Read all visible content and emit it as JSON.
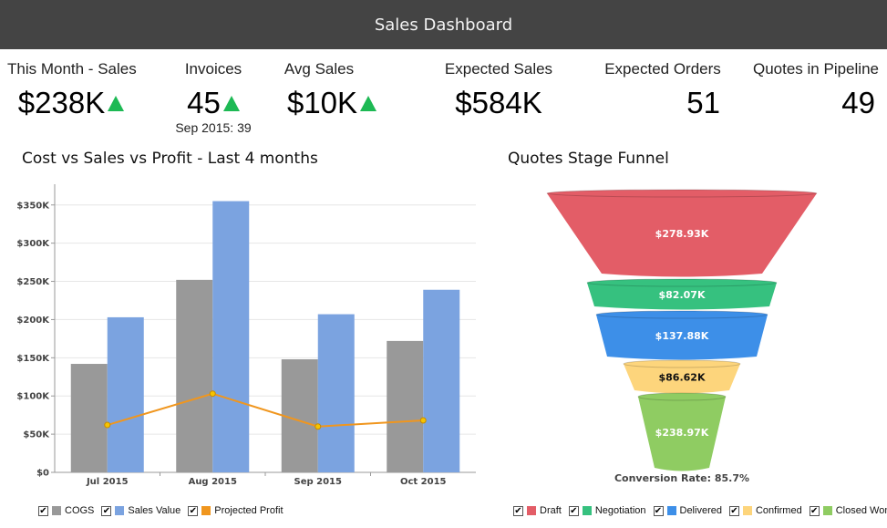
{
  "header": {
    "title": "Sales Dashboard"
  },
  "kpis": {
    "this_month_sales": {
      "label": "This Month - Sales",
      "value": "$238K"
    },
    "invoices": {
      "label": "Invoices",
      "value": "45",
      "sub": "Sep 2015: 39"
    },
    "avg_sales": {
      "label": "Avg Sales",
      "value": "$10K"
    },
    "expected_sales": {
      "label": "Expected Sales",
      "value": "$584K"
    },
    "expected_orders": {
      "label": "Expected Orders",
      "value": "51"
    },
    "quotes_in_pipeline": {
      "label": "Quotes in Pipeline",
      "value": "49"
    }
  },
  "cost_chart": {
    "title": "Cost vs Sales vs Profit - Last 4 months",
    "legend": [
      {
        "label": "COGS",
        "color": "#999999"
      },
      {
        "label": "Sales Value",
        "color": "#7ba3e0"
      },
      {
        "label": "Projected Profit",
        "color": "#f0961e"
      }
    ]
  },
  "funnel_chart": {
    "title": "Quotes Stage Funnel",
    "conversion_label": "Conversion Rate: 85.7%",
    "legend": [
      {
        "label": "Draft",
        "color": "#e35d67"
      },
      {
        "label": "Negotiation",
        "color": "#36c17f"
      },
      {
        "label": "Delivered",
        "color": "#3d8fe8"
      },
      {
        "label": "Confirmed",
        "color": "#fdd57c"
      },
      {
        "label": "Closed Won",
        "color": "#8fcc62"
      }
    ]
  },
  "chart_data": [
    {
      "type": "bar",
      "title": "Cost vs Sales vs Profit - Last 4 months",
      "categories": [
        "Jul 2015",
        "Aug 2015",
        "Sep 2015",
        "Oct 2015"
      ],
      "series": [
        {
          "name": "COGS",
          "type": "bar",
          "values": [
            142,
            252,
            148,
            172
          ]
        },
        {
          "name": "Sales Value",
          "type": "bar",
          "values": [
            203,
            355,
            207,
            239
          ]
        },
        {
          "name": "Projected Profit",
          "type": "line",
          "values": [
            62,
            103,
            60,
            68
          ]
        }
      ],
      "unit": "thousands USD",
      "ylim": [
        0,
        370
      ],
      "yticks": [
        "$0",
        "$50K",
        "$100K",
        "$150K",
        "$200K",
        "$250K",
        "$300K",
        "$350K"
      ],
      "ytick_values": [
        0,
        50,
        100,
        150,
        200,
        250,
        300,
        350
      ],
      "grid": true,
      "legend_position": "bottom-left"
    },
    {
      "type": "funnel",
      "title": "Quotes Stage Funnel",
      "stages": [
        {
          "name": "Draft",
          "value": 278.93,
          "label": "$278.93K"
        },
        {
          "name": "Negotiation",
          "value": 82.07,
          "label": "$82.07K"
        },
        {
          "name": "Delivered",
          "value": 137.88,
          "label": "$137.88K"
        },
        {
          "name": "Confirmed",
          "value": 86.62,
          "label": "$86.62K"
        },
        {
          "name": "Closed Won",
          "value": 238.97,
          "label": "$238.97K"
        }
      ],
      "conversion_rate": "Conversion Rate: 85.7%",
      "legend_position": "bottom"
    }
  ]
}
